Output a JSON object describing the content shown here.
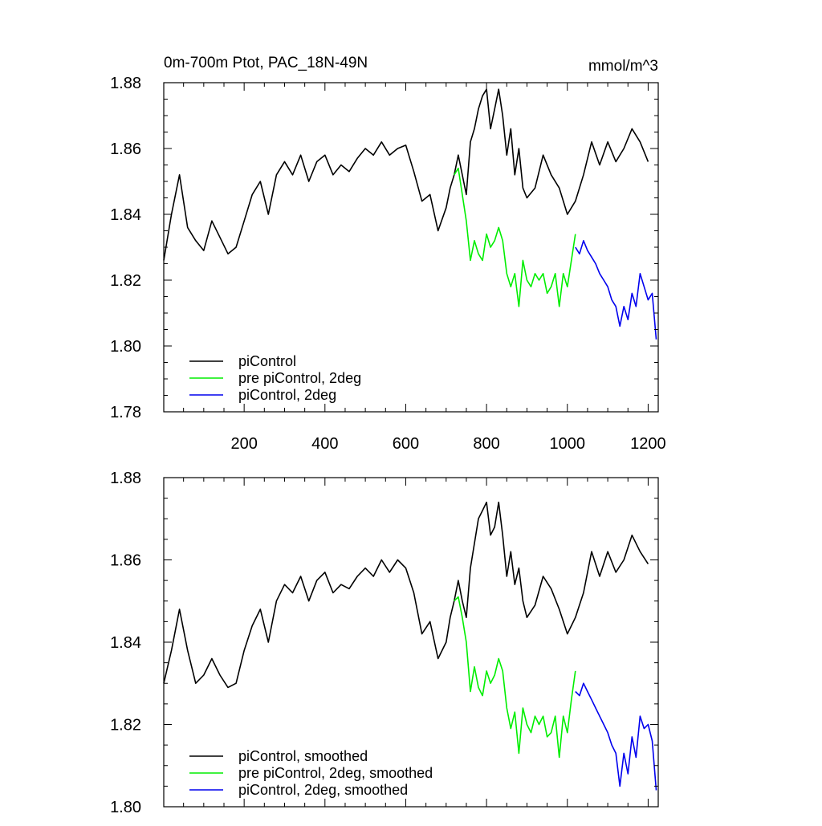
{
  "colors": {
    "piControl": "#000000",
    "pre_piControl_2deg": "#00ee00",
    "piControl_2deg": "#0000ee",
    "axis": "#000000",
    "background": "#ffffff"
  },
  "chart_data": [
    {
      "id": "top",
      "type": "line",
      "title": "0m-700m Ptot, PAC_18N-49N",
      "units": "mmol/m^3",
      "xlabel": "",
      "ylabel": "",
      "xlim": [
        1,
        1225
      ],
      "ylim": [
        1.78,
        1.88
      ],
      "xticks": [
        200,
        400,
        600,
        800,
        1000,
        1200
      ],
      "xtick_labels": [
        "200",
        "400",
        "600",
        "800",
        "1000",
        "1200"
      ],
      "yticks": [
        1.78,
        1.8,
        1.82,
        1.84,
        1.86,
        1.88
      ],
      "ytick_labels": [
        "1.78",
        "1.80",
        "1.82",
        "1.84",
        "1.86",
        "1.88"
      ],
      "grid": false,
      "legend_position": "bottom-left",
      "series": [
        {
          "name": "piControl",
          "legend_label": "piControl",
          "color_key": "piControl",
          "x": [
            1,
            20,
            40,
            60,
            80,
            100,
            120,
            140,
            160,
            180,
            200,
            220,
            240,
            260,
            280,
            300,
            320,
            340,
            360,
            380,
            400,
            420,
            440,
            460,
            480,
            500,
            520,
            540,
            560,
            580,
            600,
            620,
            640,
            660,
            680,
            700,
            710,
            720,
            730,
            740,
            750,
            760,
            770,
            780,
            790,
            800,
            810,
            820,
            830,
            840,
            850,
            860,
            870,
            880,
            890,
            900,
            920,
            940,
            960,
            980,
            1000,
            1010,
            1020,
            1040,
            1060,
            1080,
            1100,
            1120,
            1140,
            1160,
            1180,
            1200
          ],
          "y": [
            1.826,
            1.84,
            1.852,
            1.836,
            1.832,
            1.829,
            1.838,
            1.833,
            1.828,
            1.83,
            1.838,
            1.846,
            1.85,
            1.84,
            1.852,
            1.856,
            1.852,
            1.858,
            1.85,
            1.856,
            1.858,
            1.852,
            1.855,
            1.853,
            1.857,
            1.86,
            1.858,
            1.862,
            1.858,
            1.86,
            1.861,
            1.853,
            1.844,
            1.846,
            1.835,
            1.842,
            1.848,
            1.852,
            1.858,
            1.852,
            1.846,
            1.862,
            1.866,
            1.872,
            1.876,
            1.878,
            1.866,
            1.872,
            1.878,
            1.87,
            1.858,
            1.866,
            1.852,
            1.86,
            1.848,
            1.845,
            1.848,
            1.858,
            1.852,
            1.848,
            1.84,
            1.842,
            1.844,
            1.852,
            1.862,
            1.855,
            1.862,
            1.856,
            1.86,
            1.866,
            1.862,
            1.856
          ]
        },
        {
          "name": "pre piControl, 2deg",
          "legend_label": "pre piControl, 2deg",
          "color_key": "pre_piControl_2deg",
          "x": [
            720,
            730,
            740,
            750,
            760,
            770,
            780,
            790,
            800,
            810,
            820,
            830,
            840,
            850,
            860,
            870,
            880,
            890,
            900,
            910,
            920,
            930,
            940,
            950,
            960,
            970,
            980,
            990,
            1000,
            1010,
            1020
          ],
          "y": [
            1.852,
            1.854,
            1.846,
            1.838,
            1.826,
            1.832,
            1.828,
            1.826,
            1.834,
            1.83,
            1.832,
            1.836,
            1.832,
            1.822,
            1.818,
            1.822,
            1.812,
            1.826,
            1.82,
            1.818,
            1.822,
            1.82,
            1.822,
            1.816,
            1.818,
            1.822,
            1.812,
            1.822,
            1.818,
            1.826,
            1.834
          ]
        },
        {
          "name": "piControl, 2deg",
          "legend_label": "piControl, 2deg",
          "color_key": "piControl_2deg",
          "x": [
            1020,
            1030,
            1040,
            1050,
            1060,
            1070,
            1080,
            1090,
            1100,
            1110,
            1120,
            1130,
            1140,
            1150,
            1160,
            1170,
            1180,
            1190,
            1200,
            1210,
            1220
          ],
          "y": [
            1.83,
            1.828,
            1.832,
            1.829,
            1.827,
            1.825,
            1.822,
            1.82,
            1.818,
            1.814,
            1.812,
            1.806,
            1.812,
            1.808,
            1.816,
            1.812,
            1.822,
            1.818,
            1.814,
            1.816,
            1.802
          ]
        }
      ]
    },
    {
      "id": "bottom",
      "type": "line",
      "title": "",
      "xlabel": "",
      "ylabel": "",
      "xlim": [
        1,
        1225
      ],
      "ylim": [
        1.8,
        1.88
      ],
      "xticks": [
        200,
        400,
        600,
        800,
        1000,
        1200
      ],
      "xtick_labels": [],
      "yticks": [
        1.8,
        1.82,
        1.84,
        1.86,
        1.88
      ],
      "ytick_labels": [
        "1.80",
        "1.82",
        "1.84",
        "1.86",
        "1.88"
      ],
      "grid": false,
      "legend_position": "bottom-left",
      "series": [
        {
          "name": "piControl, smoothed",
          "legend_label": "piControl, smoothed",
          "color_key": "piControl",
          "x": [
            1,
            20,
            40,
            60,
            80,
            100,
            120,
            140,
            160,
            180,
            200,
            220,
            240,
            260,
            280,
            300,
            320,
            340,
            360,
            380,
            400,
            420,
            440,
            460,
            480,
            500,
            520,
            540,
            560,
            580,
            600,
            620,
            640,
            660,
            680,
            700,
            710,
            720,
            730,
            740,
            750,
            760,
            770,
            780,
            790,
            800,
            810,
            820,
            830,
            840,
            850,
            860,
            870,
            880,
            890,
            900,
            920,
            940,
            960,
            980,
            1000,
            1010,
            1020,
            1040,
            1060,
            1080,
            1100,
            1120,
            1140,
            1160,
            1180,
            1200
          ],
          "y": [
            1.83,
            1.838,
            1.848,
            1.838,
            1.83,
            1.832,
            1.836,
            1.832,
            1.829,
            1.83,
            1.838,
            1.844,
            1.848,
            1.84,
            1.85,
            1.854,
            1.852,
            1.856,
            1.85,
            1.855,
            1.857,
            1.852,
            1.854,
            1.853,
            1.856,
            1.858,
            1.856,
            1.86,
            1.857,
            1.86,
            1.858,
            1.852,
            1.842,
            1.845,
            1.836,
            1.84,
            1.846,
            1.85,
            1.855,
            1.85,
            1.846,
            1.858,
            1.864,
            1.87,
            1.872,
            1.874,
            1.866,
            1.868,
            1.874,
            1.866,
            1.856,
            1.862,
            1.854,
            1.858,
            1.85,
            1.846,
            1.849,
            1.856,
            1.853,
            1.848,
            1.842,
            1.844,
            1.846,
            1.852,
            1.862,
            1.856,
            1.862,
            1.857,
            1.86,
            1.866,
            1.862,
            1.859
          ]
        },
        {
          "name": "pre piControl, 2deg, smoothed",
          "legend_label": "pre piControl, 2deg, smoothed",
          "color_key": "pre_piControl_2deg",
          "x": [
            720,
            730,
            740,
            750,
            760,
            770,
            780,
            790,
            800,
            810,
            820,
            830,
            840,
            850,
            860,
            870,
            880,
            890,
            900,
            910,
            920,
            930,
            940,
            950,
            960,
            970,
            980,
            990,
            1000,
            1010,
            1020
          ],
          "y": [
            1.85,
            1.851,
            1.846,
            1.84,
            1.828,
            1.834,
            1.829,
            1.827,
            1.833,
            1.83,
            1.832,
            1.836,
            1.833,
            1.824,
            1.819,
            1.823,
            1.813,
            1.824,
            1.82,
            1.818,
            1.822,
            1.82,
            1.822,
            1.817,
            1.818,
            1.822,
            1.812,
            1.822,
            1.818,
            1.826,
            1.833
          ]
        },
        {
          "name": "piControl, 2deg, smoothed",
          "legend_label": "piControl, 2deg, smoothed",
          "color_key": "piControl_2deg",
          "x": [
            1020,
            1030,
            1040,
            1050,
            1060,
            1070,
            1080,
            1090,
            1100,
            1110,
            1120,
            1130,
            1140,
            1150,
            1160,
            1170,
            1180,
            1190,
            1200,
            1210,
            1220
          ],
          "y": [
            1.828,
            1.827,
            1.83,
            1.828,
            1.826,
            1.824,
            1.822,
            1.82,
            1.818,
            1.815,
            1.813,
            1.805,
            1.813,
            1.808,
            1.817,
            1.812,
            1.822,
            1.819,
            1.82,
            1.816,
            1.804
          ]
        }
      ]
    }
  ]
}
